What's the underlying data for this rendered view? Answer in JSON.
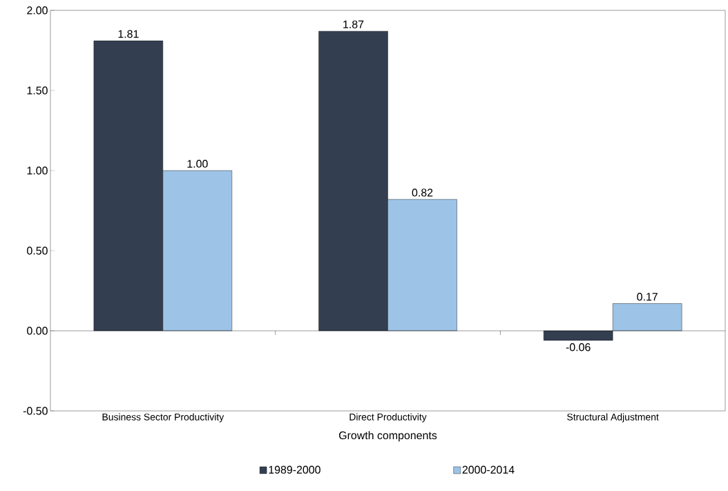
{
  "chart_data": {
    "type": "bar",
    "xlabel": "Growth components",
    "categories": [
      "Business Sector Productivity",
      "Direct Productivity",
      "Structural Adjustment"
    ],
    "series": [
      {
        "name": "1989-2000",
        "color": "#333f50",
        "values": [
          1.81,
          1.87,
          -0.06
        ]
      },
      {
        "name": "2000-2014",
        "color": "#9dc3e6",
        "values": [
          1.0,
          0.82,
          0.17
        ]
      }
    ],
    "value_labels": [
      [
        "1.81",
        "1.87",
        "-0.06"
      ],
      [
        "1.00",
        "0.82",
        "0.17"
      ]
    ],
    "ylim": [
      -0.5,
      2.0
    ],
    "yticks": [
      {
        "value": -0.5,
        "label": "-0.50"
      },
      {
        "value": 0,
        "label": "0.00"
      },
      {
        "value": 0.5,
        "label": "0.50"
      },
      {
        "value": 1.0,
        "label": "1.00"
      },
      {
        "value": 1.5,
        "label": "1.50"
      },
      {
        "value": 2.0,
        "label": "2.00"
      }
    ],
    "legend": "bottom"
  }
}
